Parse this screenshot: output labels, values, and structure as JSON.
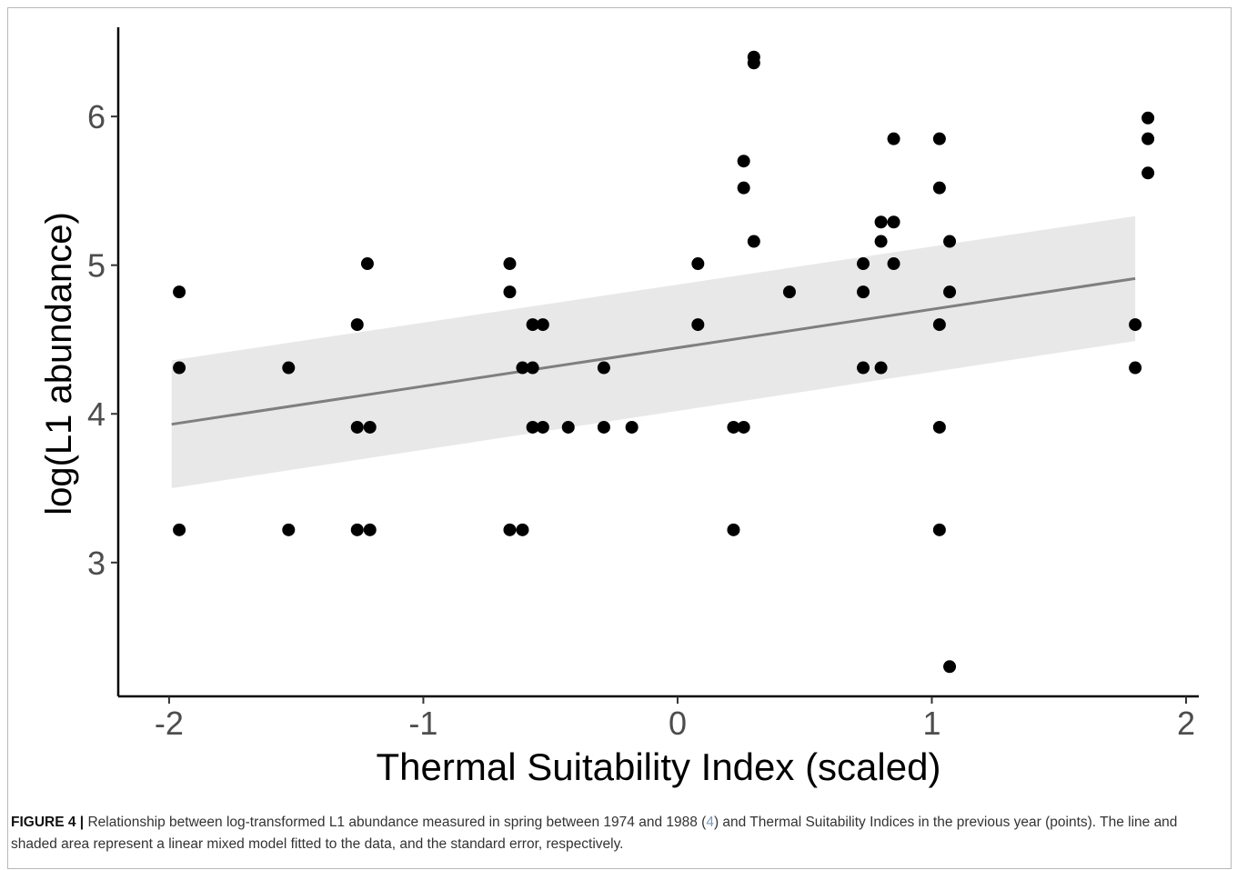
{
  "chart_data": {
    "type": "scatter",
    "xlabel": "Thermal Suitability Index (scaled)",
    "ylabel": "log(L1 abundance)",
    "xlim": [
      -2.2,
      2.05
    ],
    "ylim": [
      2.1,
      6.6
    ],
    "xticks": [
      "-2",
      "-1",
      "0",
      "1",
      "2"
    ],
    "yticks": [
      "3",
      "4",
      "5",
      "6"
    ],
    "grid": false,
    "legend": "none",
    "point_color": "#000000",
    "line_color": "#7f7f7f",
    "band_color": "#e8e8e8",
    "fit": {
      "x": [
        -1.99,
        1.8
      ],
      "y": [
        3.93,
        4.91
      ],
      "se_lower": [
        3.5,
        4.49
      ],
      "se_upper": [
        4.36,
        5.33
      ]
    },
    "points": [
      [
        -1.96,
        4.82
      ],
      [
        -1.96,
        4.31
      ],
      [
        -1.96,
        3.22
      ],
      [
        -1.53,
        4.31
      ],
      [
        -1.53,
        3.22
      ],
      [
        -1.26,
        4.6
      ],
      [
        -1.26,
        3.91
      ],
      [
        -1.26,
        3.22
      ],
      [
        -1.22,
        5.01
      ],
      [
        -1.21,
        3.91
      ],
      [
        -1.21,
        3.22
      ],
      [
        -0.66,
        5.01
      ],
      [
        -0.66,
        4.82
      ],
      [
        -0.66,
        3.22
      ],
      [
        -0.61,
        4.31
      ],
      [
        -0.61,
        3.22
      ],
      [
        -0.57,
        4.6
      ],
      [
        -0.57,
        4.31
      ],
      [
        -0.57,
        3.91
      ],
      [
        -0.53,
        4.6
      ],
      [
        -0.53,
        3.91
      ],
      [
        -0.43,
        3.91
      ],
      [
        -0.29,
        4.31
      ],
      [
        -0.29,
        3.91
      ],
      [
        -0.18,
        3.91
      ],
      [
        0.08,
        5.01
      ],
      [
        0.08,
        4.6
      ],
      [
        0.22,
        3.91
      ],
      [
        0.22,
        3.22
      ],
      [
        0.26,
        5.7
      ],
      [
        0.26,
        5.52
      ],
      [
        0.26,
        3.91
      ],
      [
        0.3,
        6.4
      ],
      [
        0.3,
        6.36
      ],
      [
        0.3,
        5.16
      ],
      [
        0.44,
        4.82
      ],
      [
        0.73,
        5.01
      ],
      [
        0.73,
        4.82
      ],
      [
        0.73,
        4.31
      ],
      [
        0.8,
        5.29
      ],
      [
        0.8,
        5.16
      ],
      [
        0.8,
        4.31
      ],
      [
        0.85,
        5.85
      ],
      [
        0.85,
        5.29
      ],
      [
        0.85,
        5.01
      ],
      [
        1.03,
        5.85
      ],
      [
        1.03,
        5.52
      ],
      [
        1.03,
        4.6
      ],
      [
        1.03,
        3.91
      ],
      [
        1.03,
        3.22
      ],
      [
        1.07,
        5.16
      ],
      [
        1.07,
        4.82
      ],
      [
        1.07,
        2.3
      ],
      [
        1.8,
        4.6
      ],
      [
        1.8,
        4.31
      ],
      [
        1.85,
        5.99
      ],
      [
        1.85,
        5.85
      ],
      [
        1.85,
        5.62
      ]
    ]
  },
  "caption": {
    "label": "FIGURE 4 |",
    "text_before": " Relationship between log-transformed L1 abundance measured in spring between 1974 and 1988 (",
    "ref": "4",
    "text_after": ") and Thermal Suitability Indices in the previous year (points). The line and shaded area represent a linear mixed model fitted to the data, and the standard error, respectively."
  }
}
